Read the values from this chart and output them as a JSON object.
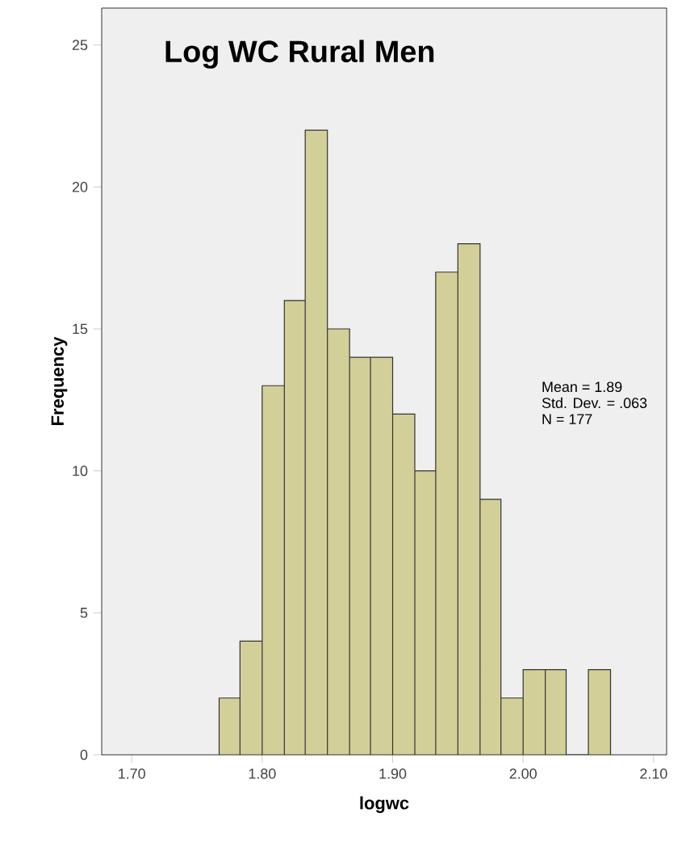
{
  "chart_data": {
    "type": "histogram",
    "title": "Log WC Rural Men",
    "xlabel": "logwc",
    "ylabel": "Frequency",
    "bins": [
      1.767,
      1.783,
      1.8,
      1.817,
      1.833,
      1.85,
      1.867,
      1.883,
      1.9,
      1.917,
      1.933,
      1.95,
      1.967,
      1.983,
      2.0,
      2.017,
      2.033,
      2.05,
      2.067
    ],
    "values": [
      2,
      4,
      13,
      16,
      22,
      15,
      14,
      14,
      12,
      10,
      17,
      18,
      9,
      2,
      3,
      3,
      0,
      3
    ],
    "color": "#d3cf98",
    "xlim": [
      1.677,
      2.11
    ],
    "ylim": [
      0,
      26.3
    ],
    "xticks": [
      {
        "value": 1.7,
        "label": "1.70"
      },
      {
        "value": 1.8,
        "label": "1.80"
      },
      {
        "value": 1.9,
        "label": "1.90"
      },
      {
        "value": 2.0,
        "label": "2.00"
      },
      {
        "value": 2.1,
        "label": "2.10"
      }
    ],
    "yticks": [
      0,
      5,
      10,
      15,
      20,
      25
    ],
    "grid": false,
    "annotations": [
      "Mean = 1.89",
      "Std. Dev. = .063",
      "N = 177"
    ]
  }
}
